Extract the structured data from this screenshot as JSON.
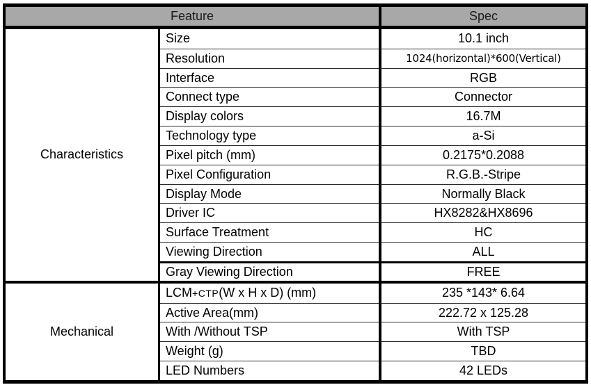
{
  "header": {
    "feature_label": "Feature",
    "spec_label": "Spec"
  },
  "sections": [
    {
      "group_label": "Characteristics",
      "rows": [
        {
          "feature": "Size",
          "spec": "10.1 inch"
        },
        {
          "feature": "Resolution",
          "spec": "1024(horizontal)*600(Vertical)"
        },
        {
          "feature": "Interface",
          "spec": "RGB"
        },
        {
          "feature": "Connect type",
          "spec": "Connector"
        },
        {
          "feature": "Display colors",
          "spec": "16.7M"
        },
        {
          "feature": "Technology type",
          "spec": "a-Si"
        },
        {
          "feature": "Pixel pitch (mm)",
          "spec": "0.2175*0.2088"
        },
        {
          "feature": "Pixel Configuration",
          "spec": "R.G.B.-Stripe"
        },
        {
          "feature": "Display Mode",
          "spec": "Normally Black"
        },
        {
          "feature": "Driver IC",
          "spec": "HX8282&HX8696"
        },
        {
          "feature": "Surface Treatment",
          "spec": "HC"
        },
        {
          "feature": "Viewing Direction",
          "spec": "ALL"
        },
        {
          "feature": "Gray Viewing Direction",
          "spec": "FREE"
        }
      ]
    },
    {
      "group_label": "Mechanical",
      "rows": [
        {
          "feature_part1": "LCM ",
          "feature_part_small": "+CTP",
          "feature_part2": " (W x H x D) (mm)",
          "spec": "235 *143* 6.64"
        },
        {
          "feature": "Active Area(mm)",
          "spec": "222.72 x 125.28"
        },
        {
          "feature": "With /Without TSP",
          "spec": "With TSP"
        },
        {
          "feature": "Weight (g)",
          "spec": "TBD"
        },
        {
          "feature": "LED Numbers",
          "spec": "42 LEDs"
        }
      ]
    }
  ],
  "colors": {
    "header_bg": "#a8a8a8",
    "border": "#000000",
    "grid_line": "#2a2a2a",
    "text": "#000000"
  }
}
